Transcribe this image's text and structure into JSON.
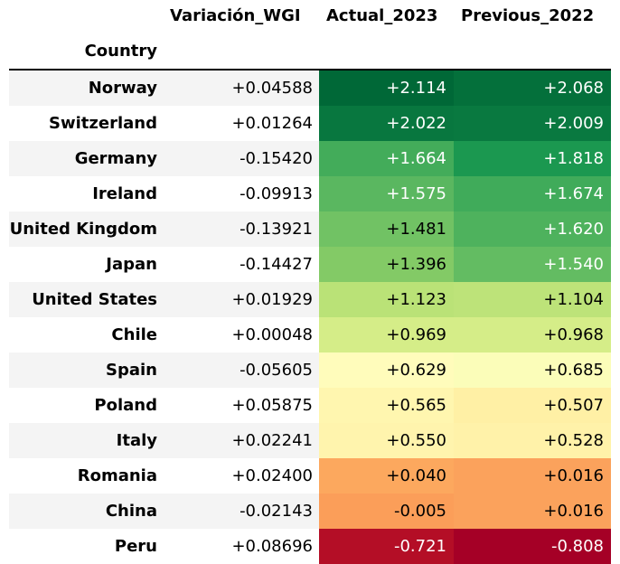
{
  "table": {
    "index_label": "Country",
    "columns": [
      "Variación_WGI",
      "Actual_2023",
      "Previous_2022"
    ]
  },
  "chart_data": {
    "type": "table",
    "index_label": "Country",
    "columns": [
      "Variación_WGI",
      "Actual_2023",
      "Previous_2022"
    ],
    "colormap": "RdYlGn",
    "colored_columns": [
      "Actual_2023",
      "Previous_2022"
    ],
    "color_range": [
      -0.808,
      2.114
    ],
    "rows": [
      {
        "country": "Norway",
        "variacion": "+0.04588",
        "actual": "+2.114",
        "previous": "+2.068"
      },
      {
        "country": "Switzerland",
        "variacion": "+0.01264",
        "actual": "+2.022",
        "previous": "+2.009"
      },
      {
        "country": "Germany",
        "variacion": "-0.15420",
        "actual": "+1.664",
        "previous": "+1.818"
      },
      {
        "country": "Ireland",
        "variacion": "-0.09913",
        "actual": "+1.575",
        "previous": "+1.674"
      },
      {
        "country": "United Kingdom",
        "variacion": "-0.13921",
        "actual": "+1.481",
        "previous": "+1.620"
      },
      {
        "country": "Japan",
        "variacion": "-0.14427",
        "actual": "+1.396",
        "previous": "+1.540"
      },
      {
        "country": "United States",
        "variacion": "+0.01929",
        "actual": "+1.123",
        "previous": "+1.104"
      },
      {
        "country": "Chile",
        "variacion": "+0.00048",
        "actual": "+0.969",
        "previous": "+0.968"
      },
      {
        "country": "Spain",
        "variacion": "-0.05605",
        "actual": "+0.629",
        "previous": "+0.685"
      },
      {
        "country": "Poland",
        "variacion": "+0.05875",
        "actual": "+0.565",
        "previous": "+0.507"
      },
      {
        "country": "Italy",
        "variacion": "+0.02241",
        "actual": "+0.550",
        "previous": "+0.528"
      },
      {
        "country": "Romania",
        "variacion": "+0.02400",
        "actual": "+0.040",
        "previous": "+0.016"
      },
      {
        "country": "China",
        "variacion": "-0.02143",
        "actual": "-0.005",
        "previous": "+0.016"
      },
      {
        "country": "Peru",
        "variacion": "+0.08696",
        "actual": "-0.721",
        "previous": "-0.808"
      }
    ]
  }
}
